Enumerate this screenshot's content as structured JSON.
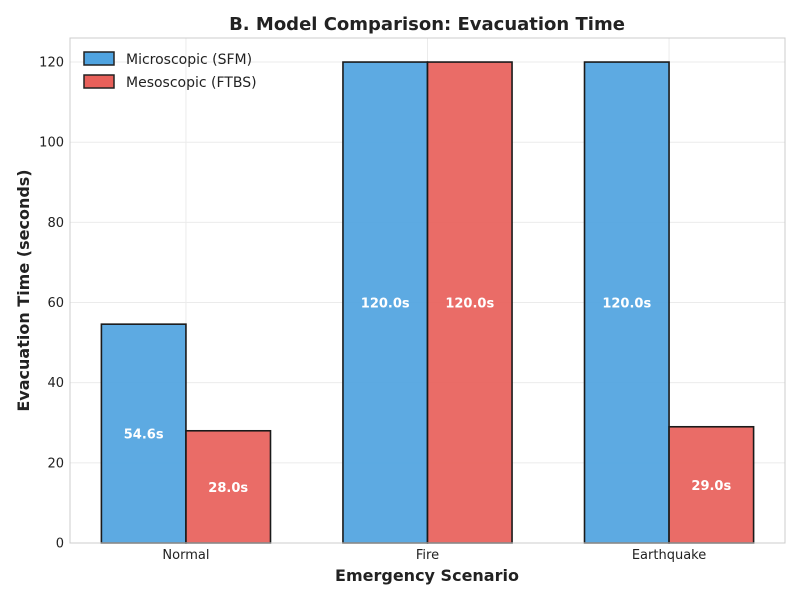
{
  "chart_data": {
    "type": "bar",
    "title": "B. Model Comparison: Evacuation Time",
    "xlabel": "Emergency Scenario",
    "ylabel": "Evacuation Time (seconds)",
    "categories": [
      "Normal",
      "Fire",
      "Earthquake"
    ],
    "series": [
      {
        "name": "Microscopic (SFM)",
        "color": "#4fa3e0",
        "values": [
          54.6,
          120.0,
          120.0
        ],
        "labels": [
          "54.6s",
          "120.0s",
          "120.0s"
        ]
      },
      {
        "name": "Mesoscopic (FTBS)",
        "color": "#e8605a",
        "values": [
          28.0,
          120.0,
          29.0
        ],
        "labels": [
          "28.0s",
          "120.0s",
          "29.0s"
        ]
      }
    ],
    "ylim": [
      0,
      126
    ],
    "yticks": [
      0,
      20,
      40,
      60,
      80,
      100,
      120
    ],
    "legend_position": "top-left",
    "grid": true
  }
}
